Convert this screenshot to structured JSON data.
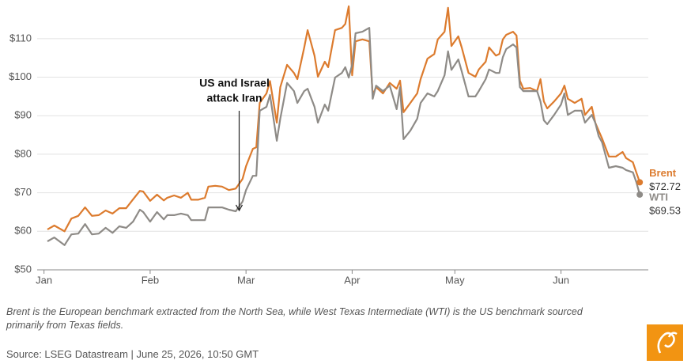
{
  "chart_data": {
    "type": "line",
    "x": [
      1,
      3,
      6,
      8,
      10,
      12,
      14,
      16,
      18,
      20,
      22,
      24,
      26,
      28,
      29,
      31,
      33,
      35,
      36,
      38,
      40,
      42,
      43,
      45,
      47,
      48,
      50,
      52,
      54,
      56,
      58,
      59,
      61,
      62,
      63,
      65,
      66,
      68,
      69,
      71,
      73,
      74,
      76,
      77,
      79,
      80,
      82,
      83,
      85,
      87,
      88,
      89,
      90,
      91,
      93,
      95,
      96,
      97,
      99,
      101,
      103,
      104,
      105,
      107,
      109,
      110,
      112,
      114,
      115,
      117,
      118,
      119,
      121,
      122,
      124,
      126,
      127,
      129,
      130,
      132,
      133,
      134,
      135,
      137,
      138,
      139,
      140,
      142,
      144,
      145,
      146,
      147,
      149,
      151,
      152,
      153,
      155,
      157,
      158,
      160,
      161,
      162,
      163,
      165,
      167,
      169,
      170,
      172,
      173,
      174
    ],
    "series": [
      {
        "name": "Brent",
        "color": "#dc7b2e",
        "end_label": "$72.72",
        "values": [
          60.5,
          61.5,
          60,
          63.3,
          64,
          66.2,
          64,
          64.2,
          65.4,
          64.6,
          66,
          66,
          68.3,
          70.5,
          70.3,
          67.9,
          69.5,
          68,
          68.7,
          69.3,
          68.7,
          70,
          68.2,
          68.2,
          68.7,
          71.6,
          71.8,
          71.6,
          70.7,
          71.1,
          73.6,
          76.9,
          81.4,
          81.8,
          93.3,
          95.8,
          99,
          88.2,
          97.4,
          103.2,
          101.1,
          99.5,
          107.7,
          112.2,
          105.6,
          100.1,
          104,
          102.6,
          112.2,
          112.8,
          113.8,
          118.4,
          100.5,
          109.3,
          109.8,
          109.3,
          95.4,
          97.4,
          95.8,
          98.5,
          97,
          99.1,
          90.9,
          93.3,
          95.8,
          99.5,
          104.8,
          106,
          109.8,
          111.8,
          118,
          108.1,
          110.6,
          107.7,
          101.1,
          100.1,
          102,
          104,
          107.7,
          105.6,
          106,
          109.8,
          111,
          111.8,
          110.8,
          99.1,
          97,
          97.2,
          96.4,
          99.5,
          93.7,
          91.9,
          93.7,
          95.8,
          97.8,
          94.4,
          93.3,
          94.4,
          90.2,
          92.3,
          88.2,
          86.1,
          84.1,
          79.4,
          79.4,
          80.6,
          79,
          77.9,
          75.3,
          72.72
        ]
      },
      {
        "name": "WTI",
        "color": "#8e8b87",
        "end_label": "$69.53",
        "values": [
          57.4,
          58.4,
          56.4,
          59.2,
          59.4,
          61.9,
          59.2,
          59.4,
          60.9,
          59.6,
          61.3,
          60.9,
          62.5,
          65.6,
          65,
          62.5,
          65,
          63.1,
          64.2,
          64.2,
          64.6,
          64.2,
          62.9,
          62.9,
          62.9,
          66.2,
          66.2,
          66.2,
          65.6,
          65.2,
          67.7,
          70.7,
          74.4,
          74.4,
          91.3,
          92.3,
          95.4,
          83.5,
          89.2,
          98.5,
          96.4,
          93.3,
          96.4,
          97,
          92.3,
          88.2,
          92.9,
          91.3,
          99.9,
          101.1,
          102.6,
          99.9,
          103.2,
          111.4,
          111.8,
          112.8,
          94.4,
          97.8,
          96.4,
          97.8,
          91.7,
          97.4,
          83.9,
          86.1,
          89.2,
          93.3,
          95.8,
          95,
          96.4,
          100.5,
          106.7,
          101.9,
          104.6,
          101.5,
          95,
          95,
          96.4,
          99.5,
          102,
          101.1,
          101.1,
          105.2,
          107.3,
          108.5,
          107.7,
          97.4,
          96.4,
          96.4,
          96.4,
          93.7,
          88.8,
          87.8,
          90.2,
          92.9,
          95.8,
          90.2,
          91.3,
          91.3,
          88.2,
          90.2,
          88.2,
          84.7,
          83.1,
          76.5,
          76.9,
          76.5,
          75.9,
          75.3,
          72.8,
          69.53
        ]
      }
    ],
    "xlim": [
      -2,
      176.5
    ],
    "xticks": [
      {
        "value": 0,
        "label": "Jan"
      },
      {
        "value": 31,
        "label": "Feb"
      },
      {
        "value": 59,
        "label": "Mar"
      },
      {
        "value": 90,
        "label": "Apr"
      },
      {
        "value": 120,
        "label": "May"
      },
      {
        "value": 151,
        "label": "Jun"
      }
    ],
    "ylim": [
      50,
      119
    ],
    "yticks": [
      {
        "value": 50,
        "label": "$50"
      },
      {
        "value": 60,
        "label": "$60"
      },
      {
        "value": 70,
        "label": "$70"
      },
      {
        "value": 80,
        "label": "$80"
      },
      {
        "value": 90,
        "label": "$90"
      },
      {
        "value": 100,
        "label": "$100"
      },
      {
        "value": 110,
        "label": "$110"
      }
    ],
    "grid": true,
    "annotation": {
      "lines": [
        "US and Israel",
        "attack Iran"
      ],
      "x": 57,
      "y": 65.2
    },
    "note": [
      "Brent is the European benchmark extracted from the North Sea, while West Texas Intermediate (WTI) is the US benchmark sourced",
      "primarily from Texas fields."
    ],
    "source": "Source: LSEG Datastream | June 25, 2026, 10:50 GMT"
  }
}
